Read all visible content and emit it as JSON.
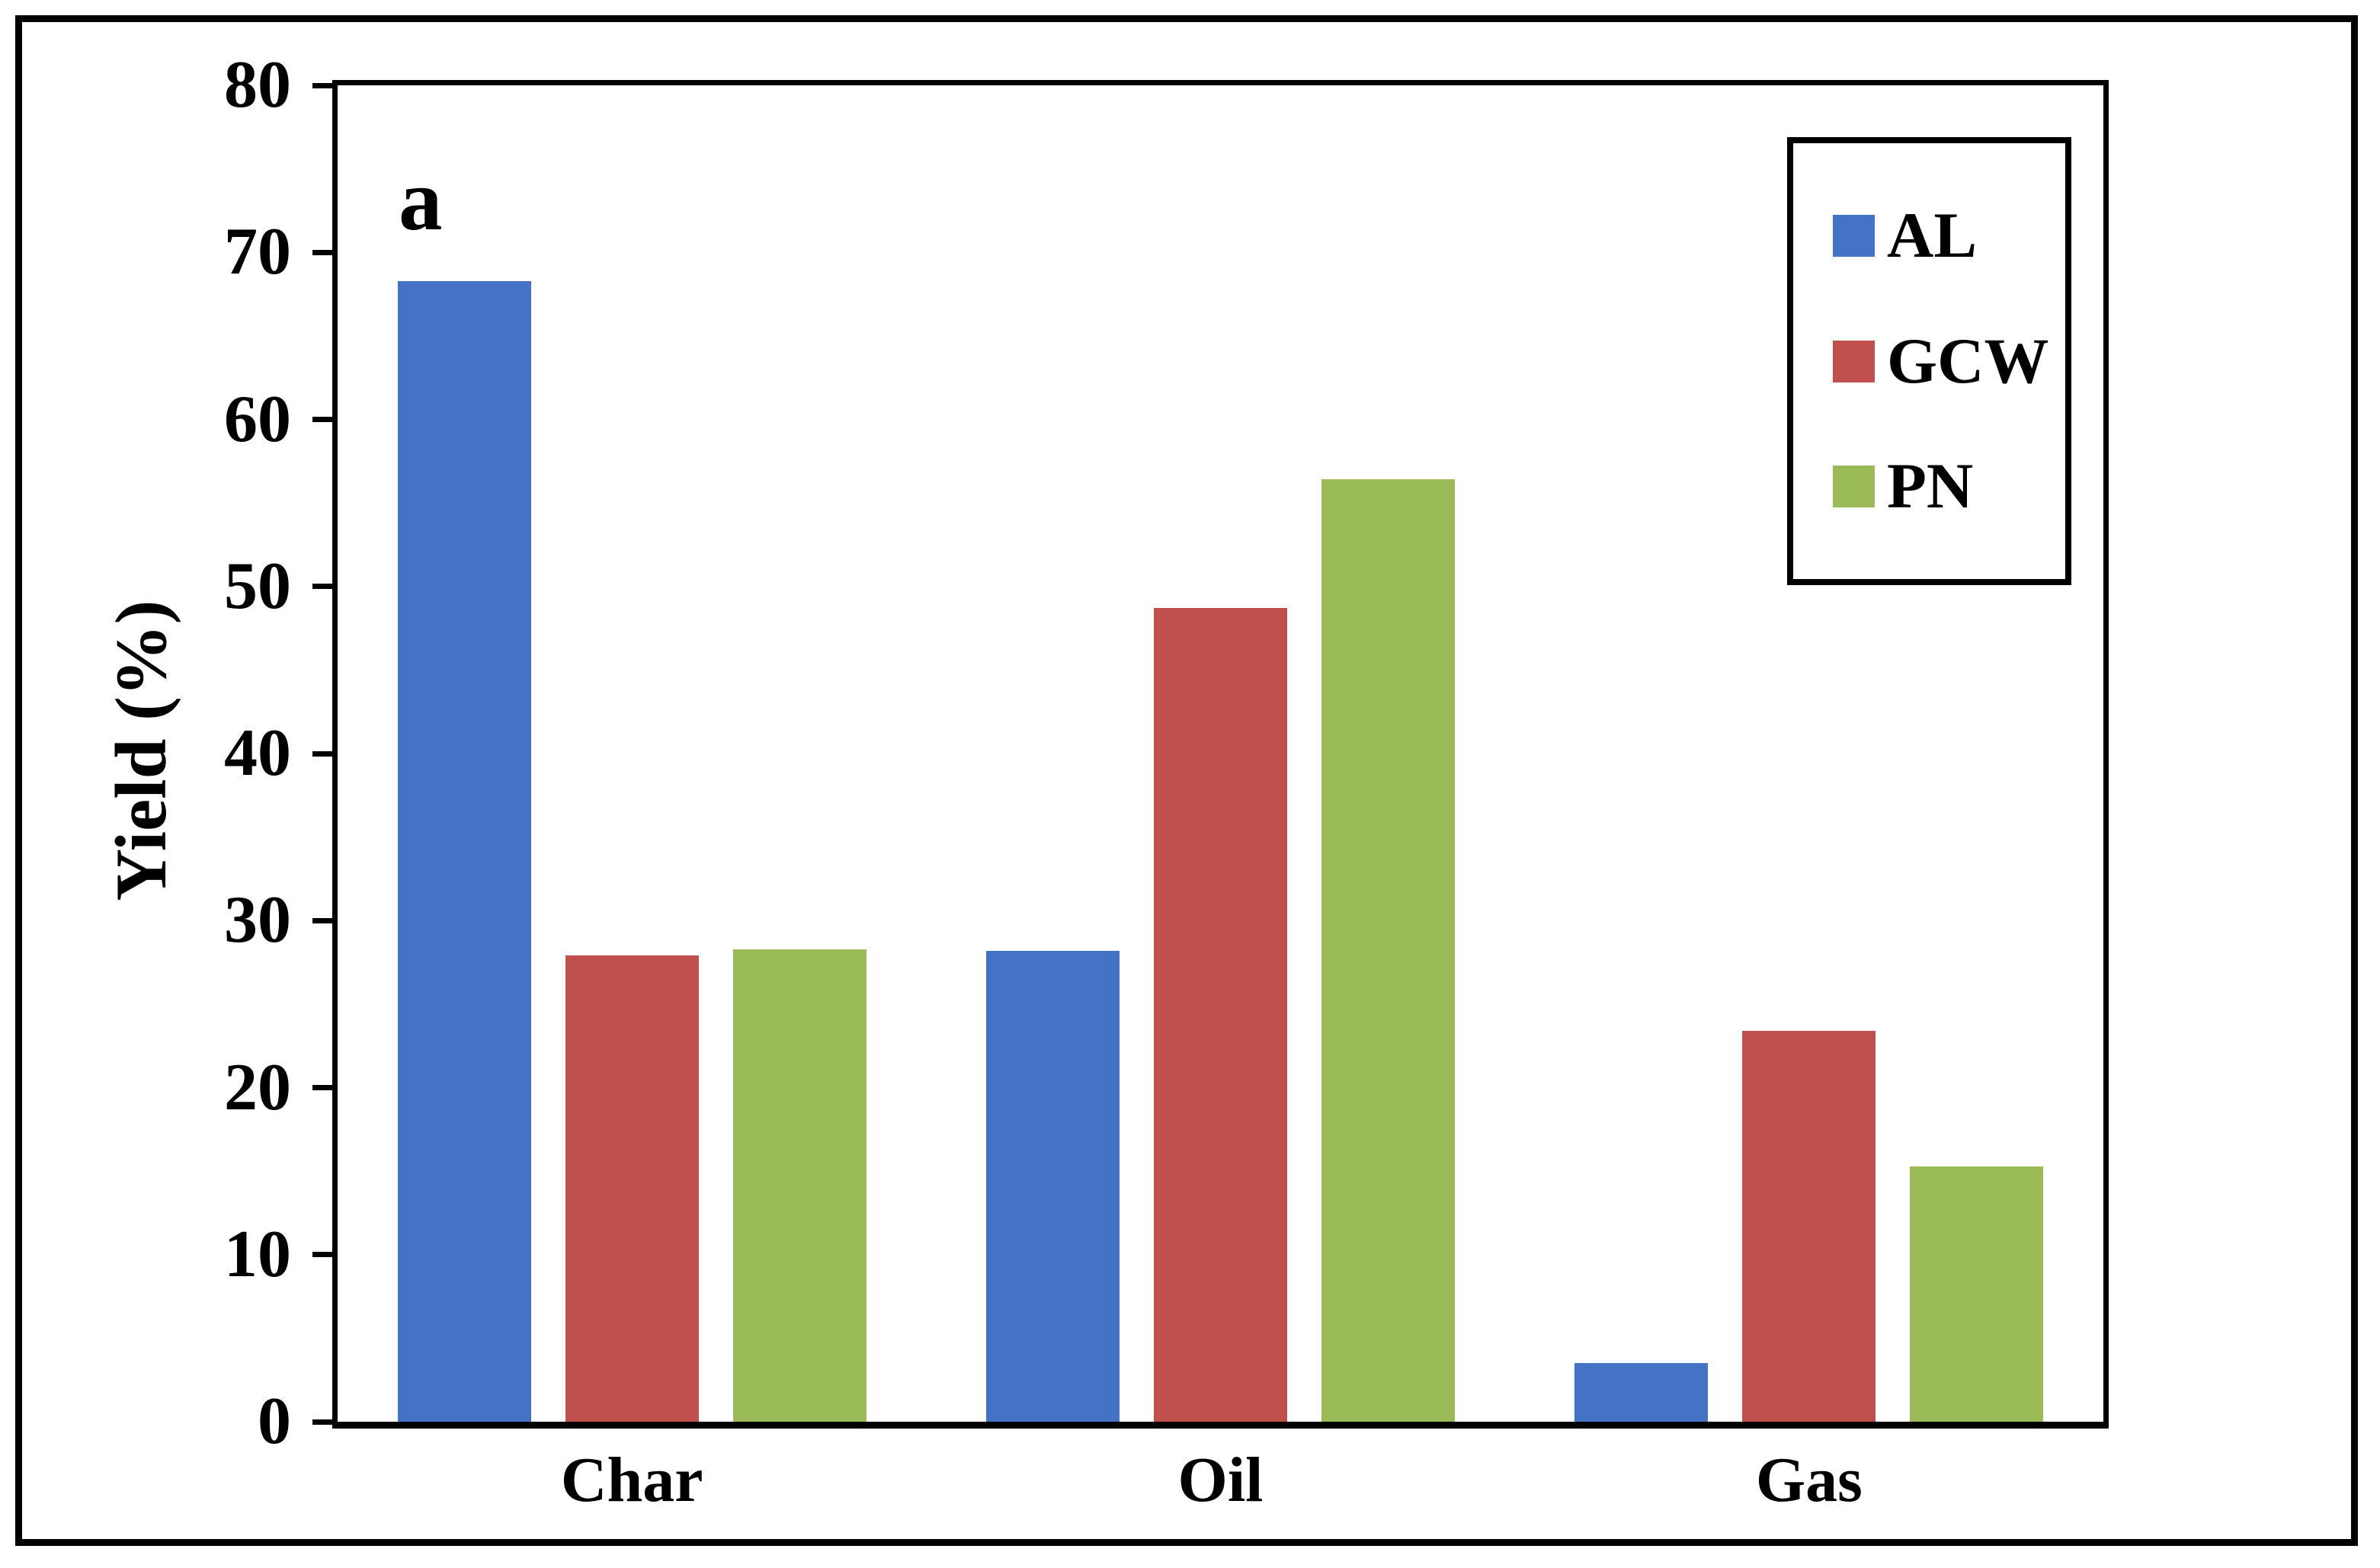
{
  "figure": {
    "background": "#ffffff",
    "border_color": "#000000"
  },
  "chart_data": {
    "type": "bar",
    "title": "",
    "annotation": "a",
    "categories": [
      "Char",
      "Oil",
      "Gas"
    ],
    "series": [
      {
        "name": "AL",
        "color": "#4472C4",
        "values": [
          68.3,
          28.2,
          3.5
        ]
      },
      {
        "name": "GCW",
        "color": "#C0504D",
        "values": [
          27.9,
          48.7,
          23.4
        ]
      },
      {
        "name": "PN",
        "color": "#9BBB59",
        "values": [
          28.3,
          56.4,
          15.3
        ]
      }
    ],
    "xlabel": "",
    "ylabel": "Yield (%)",
    "ylim": [
      0,
      80
    ],
    "ytick_step": 10,
    "yticks": [
      0,
      10,
      20,
      30,
      40,
      50,
      60,
      70,
      80
    ],
    "grid": false,
    "legend": {
      "position": "top-right",
      "entries": [
        "AL",
        "GCW",
        "PN"
      ]
    }
  }
}
